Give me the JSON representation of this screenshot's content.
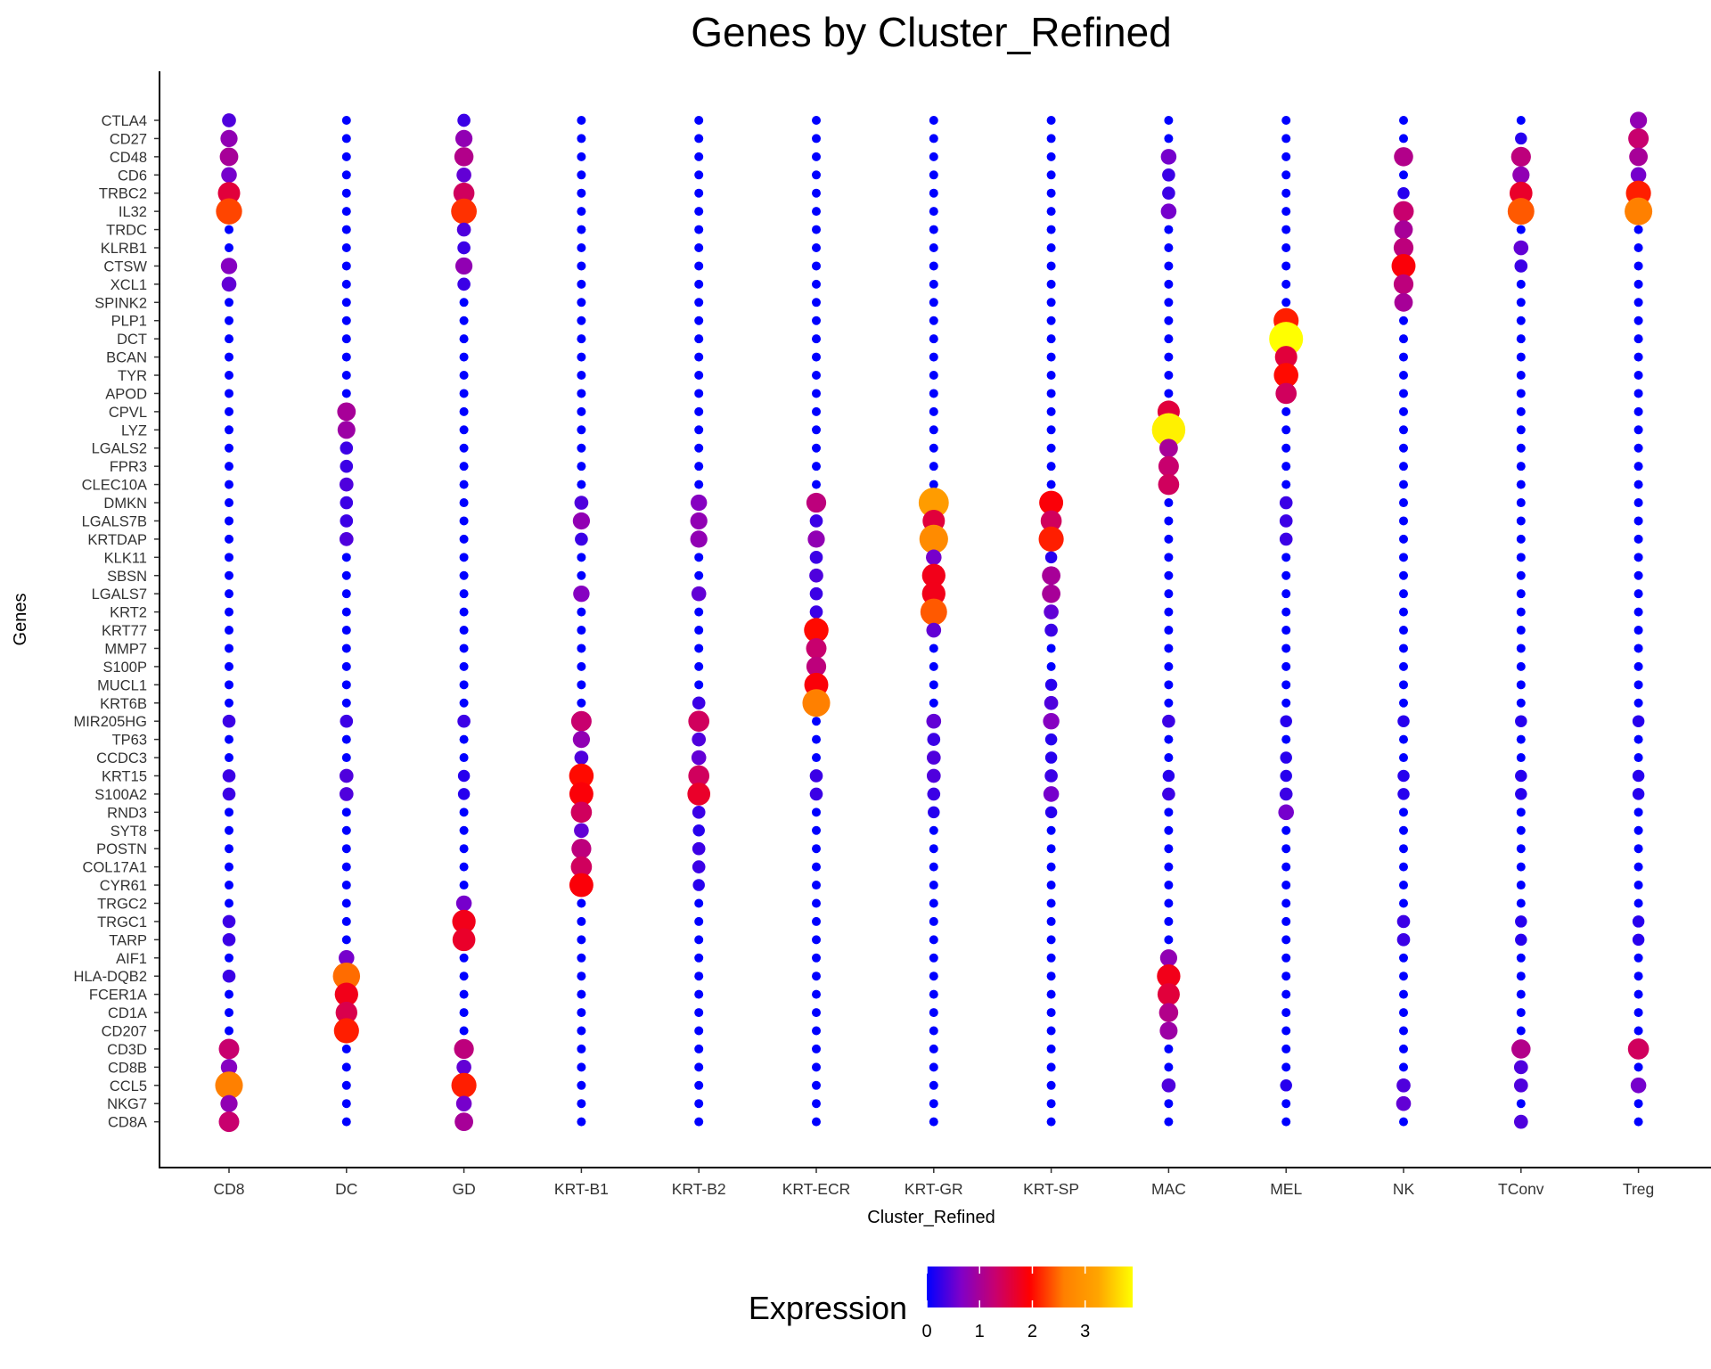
{
  "chart_data": {
    "type": "dot",
    "title": "Genes by Cluster_Refined",
    "xlabel": "Cluster_Refined",
    "ylabel": "Genes",
    "clusters": [
      "CD8",
      "DC",
      "GD",
      "KRT-B1",
      "KRT-B2",
      "KRT-ECR",
      "KRT-GR",
      "KRT-SP",
      "MAC",
      "MEL",
      "NK",
      "TConv",
      "Treg"
    ],
    "genes": [
      "CTLA4",
      "CD27",
      "CD48",
      "CD6",
      "TRBC2",
      "IL32",
      "TRDC",
      "KLRB1",
      "CTSW",
      "XCL1",
      "SPINK2",
      "PLP1",
      "DCT",
      "BCAN",
      "TYR",
      "APOD",
      "CPVL",
      "LYZ",
      "LGALS2",
      "FPR3",
      "CLEC10A",
      "DMKN",
      "LGALS7B",
      "KRTDAP",
      "KLK11",
      "SBSN",
      "LGALS7",
      "KRT2",
      "KRT77",
      "MMP7",
      "S100P",
      "MUCL1",
      "KRT6B",
      "MIR205HG",
      "TP63",
      "CCDC3",
      "KRT15",
      "S100A2",
      "RND3",
      "SYT8",
      "POSTN",
      "COL17A1",
      "CYR61",
      "TRGC2",
      "TRGC1",
      "TARP",
      "AIF1",
      "HLA-DQB2",
      "FCER1A",
      "CD1A",
      "CD207",
      "CD3D",
      "CD8B",
      "CCL5",
      "NKG7",
      "CD8A"
    ],
    "expression": [
      [
        0.4,
        0,
        0.3,
        0,
        0,
        0,
        0,
        0,
        0,
        0,
        0,
        0,
        0.8
      ],
      [
        0.8,
        0,
        0.8,
        0,
        0,
        0,
        0,
        0,
        0,
        0,
        0,
        0.2,
        1.3
      ],
      [
        1.0,
        0,
        1.1,
        0,
        0,
        0,
        0,
        0,
        0.6,
        0,
        1.1,
        1.2,
        1.0
      ],
      [
        0.6,
        0,
        0.5,
        0,
        0,
        0,
        0,
        0,
        0.3,
        0,
        0,
        0.8,
        0.6
      ],
      [
        1.6,
        0,
        1.4,
        0,
        0,
        0,
        0,
        0,
        0.3,
        0,
        0.2,
        1.7,
        2.1
      ],
      [
        2.3,
        0,
        2.2,
        0,
        0,
        0,
        0,
        0,
        0.6,
        0,
        1.3,
        2.4,
        2.6
      ],
      [
        0,
        0,
        0.4,
        0,
        0,
        0,
        0,
        0,
        0,
        0,
        1.0,
        0,
        0
      ],
      [
        0,
        0,
        0.3,
        0,
        0,
        0,
        0,
        0,
        0,
        0,
        1.2,
        0.5,
        0
      ],
      [
        0.7,
        0,
        0.8,
        0,
        0,
        0,
        0,
        0,
        0,
        0,
        1.9,
        0.3,
        0
      ],
      [
        0.5,
        0,
        0.3,
        0,
        0,
        0,
        0,
        0,
        0,
        0,
        1.2,
        0,
        0
      ],
      [
        0,
        0,
        0,
        0,
        0,
        0,
        0,
        0,
        0,
        0,
        1.0,
        0,
        0
      ],
      [
        0,
        0,
        0,
        0,
        0,
        0,
        0,
        0,
        0,
        2.1,
        0,
        0,
        0
      ],
      [
        0,
        0,
        0,
        0,
        0,
        0,
        0,
        0,
        0,
        3.9,
        0,
        0,
        0
      ],
      [
        0,
        0,
        0,
        0,
        0,
        0,
        0,
        0,
        0,
        1.6,
        0,
        0,
        0
      ],
      [
        0,
        0,
        0,
        0,
        0,
        0,
        0,
        0,
        0,
        2.0,
        0,
        0,
        0
      ],
      [
        0,
        0,
        0,
        0,
        0,
        0,
        0,
        0,
        0,
        1.4,
        0,
        0,
        0
      ],
      [
        0,
        1.0,
        0,
        0,
        0,
        0,
        0,
        0,
        1.6,
        0,
        0,
        0,
        0
      ],
      [
        0,
        0.9,
        0,
        0,
        0,
        0,
        0,
        0,
        3.8,
        0,
        0,
        0,
        0
      ],
      [
        0,
        0.3,
        0,
        0,
        0,
        0,
        0,
        0,
        1.0,
        0,
        0,
        0,
        0
      ],
      [
        0,
        0.3,
        0,
        0,
        0,
        0,
        0,
        0,
        1.3,
        0,
        0,
        0,
        0
      ],
      [
        0,
        0.4,
        0,
        0,
        0,
        0,
        0,
        0,
        1.4,
        0,
        0,
        0,
        0
      ],
      [
        0,
        0.3,
        0,
        0.4,
        0.7,
        1.2,
        3.1,
        1.9,
        0,
        0.3,
        0,
        0,
        0
      ],
      [
        0,
        0.3,
        0,
        0.8,
        0.8,
        0.3,
        1.6,
        1.4,
        0,
        0.3,
        0,
        0,
        0
      ],
      [
        0,
        0.4,
        0,
        0.3,
        0.8,
        0.8,
        2.8,
        2.1,
        0,
        0.3,
        0,
        0,
        0
      ],
      [
        0,
        0,
        0,
        0,
        0,
        0.3,
        0.6,
        0.2,
        0,
        0,
        0,
        0,
        0
      ],
      [
        0,
        0,
        0,
        0,
        0,
        0.4,
        1.8,
        1.0,
        0,
        0,
        0,
        0,
        0
      ],
      [
        0,
        0,
        0,
        0.7,
        0.5,
        0.3,
        1.8,
        1.0,
        0,
        0,
        0,
        0,
        0
      ],
      [
        0,
        0,
        0,
        0,
        0,
        0.3,
        2.4,
        0.5,
        0,
        0,
        0,
        0,
        0
      ],
      [
        0,
        0,
        0,
        0,
        0,
        2.0,
        0.5,
        0.3,
        0,
        0,
        0,
        0,
        0
      ],
      [
        0,
        0,
        0,
        0,
        0,
        1.3,
        0,
        0,
        0,
        0,
        0,
        0,
        0
      ],
      [
        0,
        0,
        0,
        0,
        0,
        1.2,
        0,
        0,
        0,
        0,
        0,
        0,
        0
      ],
      [
        0,
        0,
        0,
        0,
        0,
        1.9,
        0,
        0.2,
        0,
        0,
        0,
        0,
        0
      ],
      [
        0,
        0,
        0,
        0,
        0.3,
        2.6,
        0,
        0.4,
        0,
        0,
        0,
        0,
        0
      ],
      [
        0.3,
        0.3,
        0.3,
        1.3,
        1.4,
        0,
        0.5,
        0.7,
        0.3,
        0.2,
        0.2,
        0.2,
        0.2
      ],
      [
        0,
        0,
        0,
        0.8,
        0.4,
        0,
        0.3,
        0.2,
        0,
        0,
        0,
        0,
        0
      ],
      [
        0,
        0,
        0,
        0.4,
        0.5,
        0,
        0.4,
        0.2,
        0,
        0.2,
        0,
        0,
        0
      ],
      [
        0.3,
        0.4,
        0.2,
        2.0,
        1.4,
        0.3,
        0.4,
        0.3,
        0.2,
        0.2,
        0.2,
        0.2,
        0.2
      ],
      [
        0.3,
        0.4,
        0.2,
        1.9,
        1.7,
        0.3,
        0.3,
        0.6,
        0.3,
        0.3,
        0.2,
        0.2,
        0.2
      ],
      [
        0,
        0,
        0,
        1.4,
        0.3,
        0,
        0.2,
        0.2,
        0,
        0.6,
        0,
        0,
        0
      ],
      [
        0,
        0,
        0,
        0.5,
        0.2,
        0,
        0,
        0,
        0,
        0,
        0,
        0,
        0
      ],
      [
        0,
        0,
        0,
        1.2,
        0.3,
        0,
        0,
        0,
        0,
        0,
        0,
        0,
        0
      ],
      [
        0,
        0,
        0,
        1.4,
        0.3,
        0,
        0,
        0,
        0,
        0,
        0,
        0,
        0
      ],
      [
        0,
        0,
        0,
        1.9,
        0.2,
        0,
        0,
        0,
        0,
        0,
        0,
        0,
        0
      ],
      [
        0,
        0,
        0.6,
        0,
        0,
        0,
        0,
        0,
        0,
        0,
        0,
        0,
        0
      ],
      [
        0.3,
        0,
        1.8,
        0,
        0,
        0,
        0,
        0,
        0,
        0,
        0.3,
        0.2,
        0.2
      ],
      [
        0.3,
        0,
        1.7,
        0,
        0,
        0,
        0,
        0,
        0,
        0,
        0.3,
        0.2,
        0.2
      ],
      [
        0,
        0.6,
        0,
        0,
        0,
        0,
        0,
        0,
        0.8,
        0,
        0,
        0,
        0
      ],
      [
        0.3,
        2.5,
        0,
        0,
        0,
        0,
        0,
        0,
        1.8,
        0,
        0,
        0,
        0
      ],
      [
        0,
        1.8,
        0,
        0,
        0,
        0,
        0,
        0,
        1.6,
        0,
        0,
        0,
        0
      ],
      [
        0,
        1.5,
        0,
        0,
        0,
        0,
        0,
        0,
        1.1,
        0,
        0,
        0,
        0
      ],
      [
        0,
        2.1,
        0,
        0,
        0,
        0,
        0,
        0,
        0.9,
        0,
        0,
        0,
        0
      ],
      [
        1.3,
        0,
        1.2,
        0,
        0,
        0,
        0,
        0,
        0,
        0,
        0,
        1.1,
        1.4
      ],
      [
        0.7,
        0,
        0.5,
        0,
        0,
        0,
        0,
        0,
        0,
        0,
        0,
        0.4,
        0
      ],
      [
        2.6,
        0,
        2.1,
        0,
        0,
        0,
        0,
        0,
        0.4,
        0.2,
        0.4,
        0.4,
        0.6
      ],
      [
        0.8,
        0,
        0.6,
        0,
        0,
        0,
        0,
        0,
        0,
        0,
        0.5,
        0,
        0
      ],
      [
        1.3,
        0,
        1.0,
        0,
        0,
        0,
        0,
        0,
        0,
        0,
        0,
        0.4,
        0
      ]
    ],
    "color_scale": {
      "title": "Expression",
      "range": [
        0,
        3.9
      ],
      "ticks": [
        0,
        1,
        2,
        3
      ],
      "colors": [
        "#0000ff",
        "#8000c8",
        "#c8006e",
        "#ff0000",
        "#ff8000",
        "#ffa500",
        "#ffff00"
      ]
    },
    "grid": false,
    "legend_position": "bottom"
  }
}
